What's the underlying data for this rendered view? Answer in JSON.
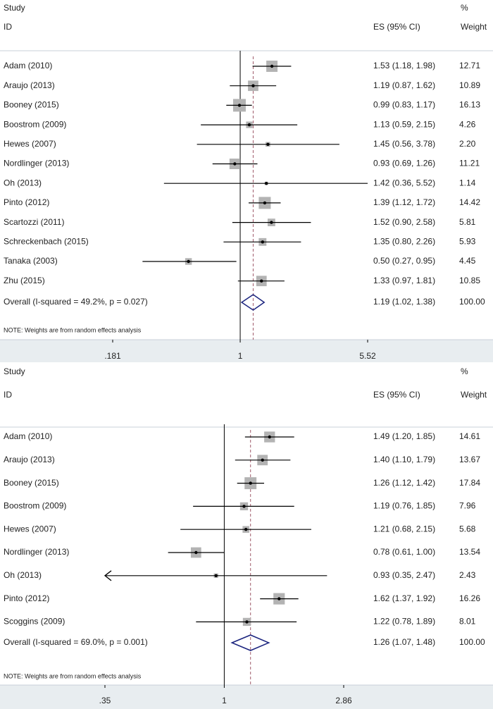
{
  "colors": {
    "background": "#ffffff",
    "axis_band": "#e8edf0",
    "separator": "#c8d0d8",
    "square": "#b3b3b3",
    "line": "#000000",
    "diamond": "#1a237e",
    "overall_line": "#a05a6a"
  },
  "chart_data": [
    {
      "type": "forest",
      "scale": "log",
      "header": {
        "study": "Study",
        "id": "ID",
        "es": "ES (95% CI)",
        "pct": "%",
        "weight": "Weight"
      },
      "note": "NOTE: Weights are from random effects analysis",
      "xlim": [
        0.181,
        5.52
      ],
      "ticks": [
        0.181,
        1,
        5.52
      ],
      "tick_labels": [
        ".181",
        "1",
        "5.52"
      ],
      "null_line": 1,
      "studies": [
        {
          "label": "Adam (2010)",
          "es": 1.53,
          "lo": 1.18,
          "hi": 1.98,
          "es_text": "1.53 (1.18, 1.98)",
          "weight": 12.71,
          "weight_text": "12.71"
        },
        {
          "label": "Araujo (2013)",
          "es": 1.19,
          "lo": 0.87,
          "hi": 1.62,
          "es_text": "1.19 (0.87, 1.62)",
          "weight": 10.89,
          "weight_text": "10.89"
        },
        {
          "label": "Booney (2015)",
          "es": 0.99,
          "lo": 0.83,
          "hi": 1.17,
          "es_text": "0.99 (0.83, 1.17)",
          "weight": 16.13,
          "weight_text": "16.13"
        },
        {
          "label": "Boostrom (2009)",
          "es": 1.13,
          "lo": 0.59,
          "hi": 2.15,
          "es_text": "1.13 (0.59, 2.15)",
          "weight": 4.26,
          "weight_text": "4.26"
        },
        {
          "label": "Hewes (2007)",
          "es": 1.45,
          "lo": 0.56,
          "hi": 3.78,
          "es_text": "1.45 (0.56, 3.78)",
          "weight": 2.2,
          "weight_text": "2.20"
        },
        {
          "label": "Nordlinger (2013)",
          "es": 0.93,
          "lo": 0.69,
          "hi": 1.26,
          "es_text": "0.93 (0.69, 1.26)",
          "weight": 11.21,
          "weight_text": "11.21"
        },
        {
          "label": "Oh (2013)",
          "es": 1.42,
          "lo": 0.36,
          "hi": 5.52,
          "es_text": "1.42 (0.36, 5.52)",
          "weight": 1.14,
          "weight_text": "1.14"
        },
        {
          "label": "Pinto (2012)",
          "es": 1.39,
          "lo": 1.12,
          "hi": 1.72,
          "es_text": "1.39 (1.12, 1.72)",
          "weight": 14.42,
          "weight_text": "14.42"
        },
        {
          "label": "Scartozzi (2011)",
          "es": 1.52,
          "lo": 0.9,
          "hi": 2.58,
          "es_text": "1.52 (0.90, 2.58)",
          "weight": 5.81,
          "weight_text": "5.81"
        },
        {
          "label": "Schreckenbach (2015)",
          "es": 1.35,
          "lo": 0.8,
          "hi": 2.26,
          "es_text": "1.35 (0.80, 2.26)",
          "weight": 5.93,
          "weight_text": "5.93"
        },
        {
          "label": "Tanaka (2003)",
          "es": 0.5,
          "lo": 0.27,
          "hi": 0.95,
          "es_text": "0.50 (0.27, 0.95)",
          "weight": 4.45,
          "weight_text": "4.45"
        },
        {
          "label": "Zhu (2015)",
          "es": 1.33,
          "lo": 0.97,
          "hi": 1.81,
          "es_text": "1.33 (0.97, 1.81)",
          "weight": 10.85,
          "weight_text": "10.85"
        }
      ],
      "overall": {
        "label": "Overall  (I-squared = 49.2%, p = 0.027)",
        "es": 1.19,
        "lo": 1.02,
        "hi": 1.38,
        "es_text": "1.19 (1.02, 1.38)",
        "weight_text": "100.00"
      }
    },
    {
      "type": "forest",
      "scale": "log",
      "header": {
        "study": "Study",
        "id": "ID",
        "es": "ES (95% CI)",
        "pct": "%",
        "weight": "Weight"
      },
      "note": "NOTE: Weights are from random effects analysis",
      "xlim": [
        0.35,
        2.86
      ],
      "ticks": [
        0.35,
        1,
        2.86
      ],
      "tick_labels": [
        ".35",
        "1",
        "2.86"
      ],
      "null_line": 1,
      "studies": [
        {
          "label": "Adam (2010)",
          "es": 1.49,
          "lo": 1.2,
          "hi": 1.85,
          "es_text": "1.49 (1.20, 1.85)",
          "weight": 14.61,
          "weight_text": "14.61"
        },
        {
          "label": "Araujo (2013)",
          "es": 1.4,
          "lo": 1.1,
          "hi": 1.79,
          "es_text": "1.40 (1.10, 1.79)",
          "weight": 13.67,
          "weight_text": "13.67"
        },
        {
          "label": "Booney (2015)",
          "es": 1.26,
          "lo": 1.12,
          "hi": 1.42,
          "es_text": "1.26 (1.12, 1.42)",
          "weight": 17.84,
          "weight_text": "17.84"
        },
        {
          "label": "Boostrom (2009)",
          "es": 1.19,
          "lo": 0.76,
          "hi": 1.85,
          "es_text": "1.19 (0.76, 1.85)",
          "weight": 7.96,
          "weight_text": "7.96"
        },
        {
          "label": "Hewes (2007)",
          "es": 1.21,
          "lo": 0.68,
          "hi": 2.15,
          "es_text": "1.21 (0.68, 2.15)",
          "weight": 5.68,
          "weight_text": "5.68"
        },
        {
          "label": "Nordlinger (2013)",
          "es": 0.78,
          "lo": 0.61,
          "hi": 1.0,
          "es_text": "0.78 (0.61, 1.00)",
          "weight": 13.54,
          "weight_text": "13.54"
        },
        {
          "label": "Oh (2013)",
          "es": 0.93,
          "lo": 0.35,
          "hi": 2.47,
          "es_text": "0.93 (0.35, 2.47)",
          "weight": 2.43,
          "weight_text": "2.43",
          "arrow_left": true
        },
        {
          "label": "Pinto (2012)",
          "es": 1.62,
          "lo": 1.37,
          "hi": 1.92,
          "es_text": "1.62 (1.37, 1.92)",
          "weight": 16.26,
          "weight_text": "16.26"
        },
        {
          "label": "Scoggins (2009)",
          "es": 1.22,
          "lo": 0.78,
          "hi": 1.89,
          "es_text": "1.22 (0.78, 1.89)",
          "weight": 8.01,
          "weight_text": "8.01"
        }
      ],
      "overall": {
        "label": "Overall  (I-squared = 69.0%, p = 0.001)",
        "es": 1.26,
        "lo": 1.07,
        "hi": 1.48,
        "es_text": "1.26 (1.07, 1.48)",
        "weight_text": "100.00"
      }
    }
  ]
}
